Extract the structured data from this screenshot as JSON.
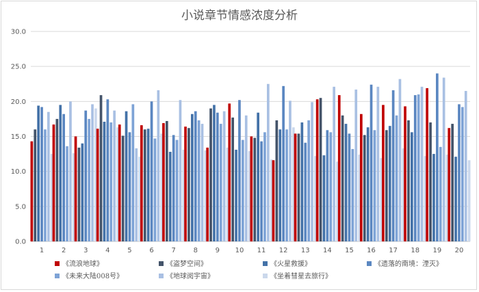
{
  "chart_data": {
    "type": "bar",
    "title": "小说章节情感浓度分析",
    "xlabel": "",
    "ylabel": "",
    "ylim": [
      0,
      30
    ],
    "yticks": [
      "0.0",
      "5.0",
      "10.0",
      "15.0",
      "20.0",
      "25.0",
      "30.0"
    ],
    "categories": [
      "1",
      "2",
      "3",
      "4",
      "5",
      "6",
      "7",
      "8",
      "9",
      "10",
      "11",
      "12",
      "13",
      "14",
      "15",
      "16",
      "17",
      "18",
      "19",
      "20"
    ],
    "grid": true,
    "legend_position": "bottom",
    "series": [
      {
        "name": "《流浪地球》",
        "color": "#c00000",
        "values": [
          14.3,
          16.7,
          15.0,
          16.1,
          16.7,
          16.6,
          16.9,
          16.4,
          13.4,
          19.7,
          15.0,
          11.6,
          15.4,
          20.3,
          20.9,
          18.2,
          19.5,
          19.3,
          21.9,
          16.2
        ]
      },
      {
        "name": "《盗梦空间》",
        "color": "#44546a",
        "values": [
          16.0,
          17.5,
          13.4,
          20.9,
          15.1,
          16.0,
          17.2,
          16.2,
          19.0,
          17.7,
          14.8,
          17.3,
          15.4,
          20.5,
          18.0,
          15.2,
          15.9,
          17.3,
          17.0,
          16.8
        ]
      },
      {
        "name": "《火星救援》",
        "color": "#4472a8",
        "values": [
          19.4,
          19.5,
          14.0,
          17.1,
          18.6,
          16.1,
          12.8,
          18.2,
          19.5,
          13.1,
          18.4,
          16.0,
          17.0,
          12.3,
          16.8,
          16.3,
          16.5,
          15.6,
          12.5,
          12.1
        ]
      },
      {
        "name": "《遗落的南境：湮灭》",
        "color": "#5b87c1",
        "values": [
          19.2,
          18.2,
          18.7,
          20.3,
          15.6,
          20.0,
          15.2,
          18.6,
          18.4,
          20.2,
          14.3,
          22.2,
          14.1,
          15.9,
          15.4,
          22.4,
          21.6,
          20.9,
          24.0,
          19.6
        ]
      },
      {
        "name": "《未来大陆008号》",
        "color": "#7ea3d6",
        "values": [
          16.0,
          13.6,
          17.5,
          17.0,
          19.6,
          14.7,
          14.5,
          17.3,
          16.8,
          14.5,
          15.6,
          16.0,
          17.3,
          15.6,
          13.2,
          15.9,
          18.0,
          21.0,
          13.5,
          19.2
        ]
      },
      {
        "name": "《地球阅宇宙》",
        "color": "#a9c0e3",
        "values": [
          18.5,
          20.0,
          19.6,
          18.7,
          13.3,
          21.6,
          20.2,
          16.8,
          18.6,
          18.0,
          22.5,
          20.1,
          19.9,
          22.1,
          21.7,
          22.1,
          23.2,
          22.1,
          23.4,
          21.5
        ]
      },
      {
        "name": "《坐着彗星去旅行》",
        "color": "#cbd8ec",
        "values": [
          12.5,
          12.6,
          19.0,
          16.3,
          12.1,
          15.4,
          13.1,
          13.0,
          13.4,
          12.9,
          11.7,
          16.3,
          12.2,
          11.4,
          12.4,
          11.9,
          13.3,
          12.2,
          12.4,
          11.6
        ]
      }
    ]
  }
}
